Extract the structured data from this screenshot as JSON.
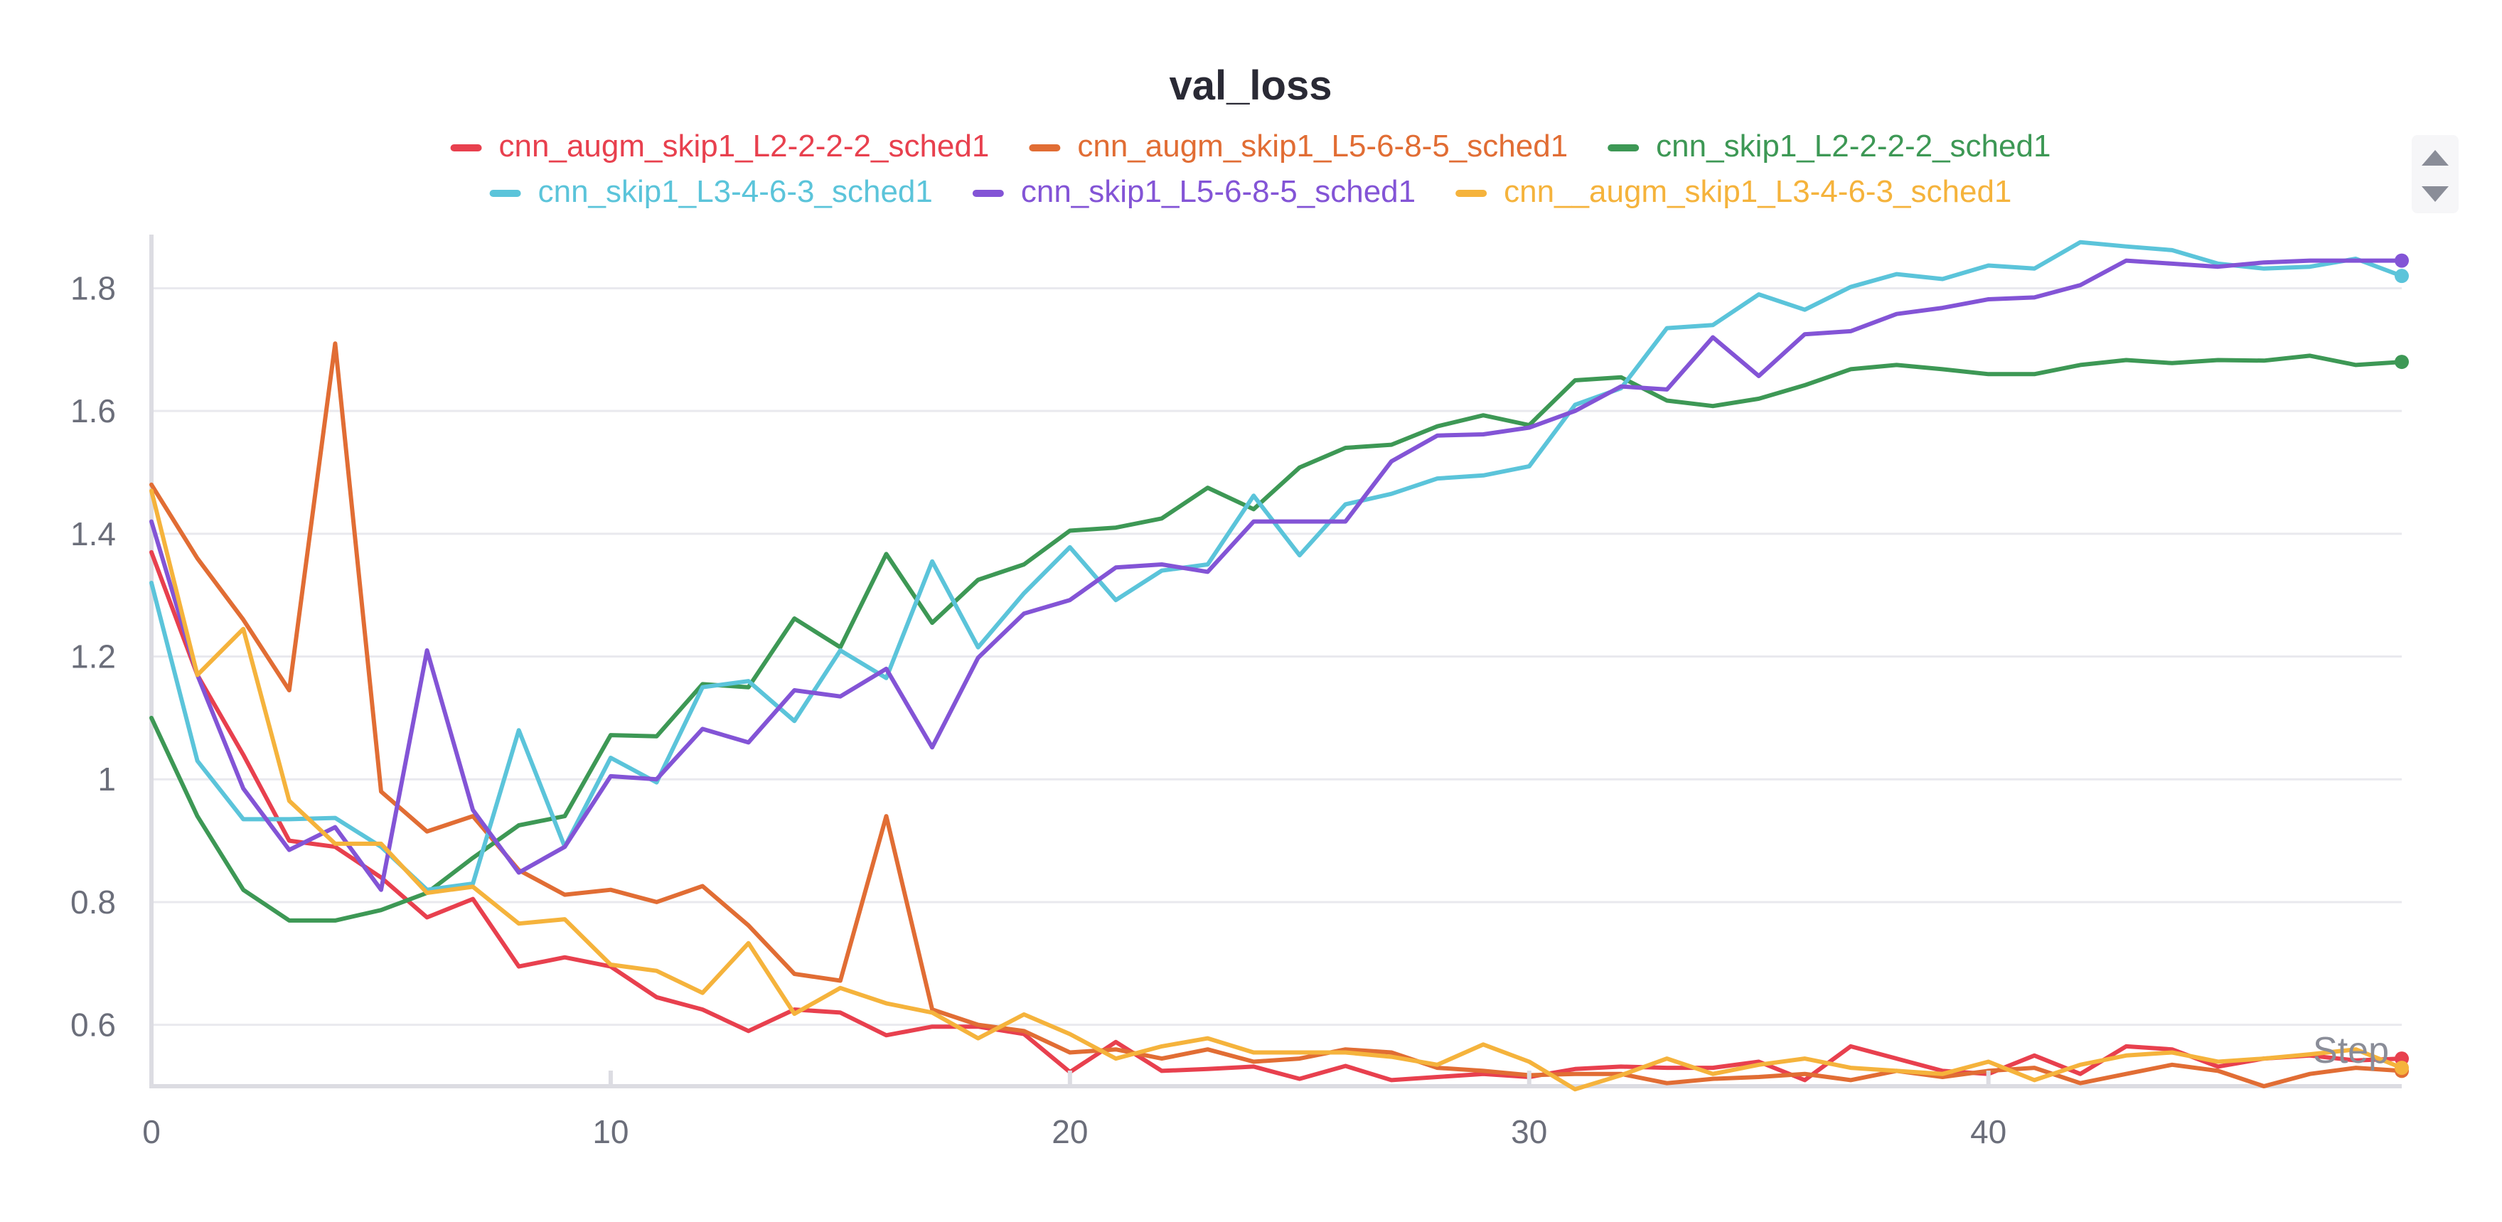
{
  "chart_data": {
    "type": "line",
    "title": "val_loss",
    "xlabel": "Step",
    "ylabel": "",
    "xlim": [
      0,
      49
    ],
    "ylim": [
      0.5,
      1.87
    ],
    "x_ticks": [
      0,
      10,
      20,
      30,
      40
    ],
    "y_ticks": [
      0.6,
      0.8,
      1.0,
      1.2,
      1.4,
      1.6,
      1.8
    ],
    "y_tick_labels": [
      "0.6",
      "0.8",
      "1",
      "1.2",
      "1.4",
      "1.6",
      "1.8"
    ],
    "grid": true,
    "legend_position": "top",
    "series": [
      {
        "name": "cnn_augm_skip1_L2-2-2-2_sched1",
        "color": "#e8404e",
        "values": [
          1.37,
          1.17,
          1.04,
          0.9,
          0.89,
          0.84,
          0.775,
          0.805,
          0.695,
          0.71,
          0.695,
          0.645,
          0.625,
          0.59,
          0.625,
          0.62,
          0.583,
          0.597,
          0.597,
          0.585,
          0.523,
          0.572,
          0.525,
          0.528,
          0.532,
          0.512,
          0.533,
          0.51,
          0.515,
          0.52,
          0.515,
          0.528,
          0.532,
          0.53,
          0.53,
          0.54,
          0.51,
          0.565,
          0.545,
          0.525,
          0.52,
          0.55,
          0.52,
          0.565,
          0.56,
          0.532,
          0.545,
          0.55,
          0.542,
          0.545
        ]
      },
      {
        "name": "cnn_augm_skip1_L5-6-8-5_sched1",
        "color": "#e16d34",
        "values": [
          1.48,
          1.36,
          1.26,
          1.145,
          1.71,
          0.98,
          0.915,
          0.94,
          0.852,
          0.812,
          0.82,
          0.8,
          0.826,
          0.762,
          0.683,
          0.672,
          0.94,
          0.625,
          0.6,
          0.59,
          0.555,
          0.56,
          0.545,
          0.56,
          0.54,
          0.545,
          0.56,
          0.555,
          0.53,
          0.525,
          0.518,
          0.52,
          0.52,
          0.505,
          0.512,
          0.515,
          0.52,
          0.51,
          0.525,
          0.515,
          0.525,
          0.53,
          0.505,
          0.52,
          0.535,
          0.525,
          0.5,
          0.52,
          0.53,
          0.525
        ]
      },
      {
        "name": "cnn_skip1_L2-2-2-2_sched1",
        "color": "#3d9855",
        "values": [
          1.1,
          0.94,
          0.82,
          0.77,
          0.77,
          0.787,
          0.815,
          0.872,
          0.925,
          0.94,
          1.072,
          1.07,
          1.155,
          1.15,
          1.262,
          1.215,
          1.367,
          1.255,
          1.325,
          1.35,
          1.405,
          1.41,
          1.425,
          1.475,
          1.44,
          1.508,
          1.54,
          1.545,
          1.575,
          1.593,
          1.577,
          1.65,
          1.655,
          1.617,
          1.608,
          1.62,
          1.642,
          1.668,
          1.675,
          1.668,
          1.66,
          1.66,
          1.675,
          1.683,
          1.678,
          1.683,
          1.682,
          1.69,
          1.675,
          1.68
        ]
      },
      {
        "name": "cnn_skip1_L3-4-6-3_sched1",
        "color": "#5bc4da",
        "values": [
          1.32,
          1.03,
          0.935,
          0.935,
          0.937,
          0.89,
          0.82,
          0.83,
          1.08,
          0.89,
          1.035,
          0.995,
          1.15,
          1.16,
          1.095,
          1.21,
          1.165,
          1.355,
          1.215,
          1.303,
          1.378,
          1.292,
          1.34,
          1.35,
          1.462,
          1.365,
          1.448,
          1.465,
          1.49,
          1.495,
          1.51,
          1.61,
          1.637,
          1.735,
          1.74,
          1.79,
          1.765,
          1.802,
          1.823,
          1.815,
          1.837,
          1.832,
          1.875,
          1.868,
          1.862,
          1.84,
          1.832,
          1.835,
          1.848,
          1.82
        ]
      },
      {
        "name": "cnn_skip1_L5-6-8-5_sched1",
        "color": "#8354d6",
        "values": [
          1.42,
          1.17,
          0.985,
          0.885,
          0.922,
          0.82,
          1.21,
          0.95,
          0.848,
          0.89,
          1.005,
          1.0,
          1.082,
          1.06,
          1.145,
          1.135,
          1.18,
          1.052,
          1.198,
          1.27,
          1.292,
          1.345,
          1.35,
          1.338,
          1.42,
          1.42,
          1.42,
          1.518,
          1.56,
          1.562,
          1.573,
          1.6,
          1.64,
          1.635,
          1.72,
          1.657,
          1.725,
          1.73,
          1.758,
          1.768,
          1.782,
          1.785,
          1.805,
          1.845,
          1.84,
          1.835,
          1.842,
          1.845,
          1.845,
          1.845
        ]
      },
      {
        "name": "cnn__augm_skip1_L3-4-6-3_sched1",
        "color": "#f5b33c",
        "values": [
          1.47,
          1.17,
          1.245,
          0.965,
          0.895,
          0.895,
          0.815,
          0.825,
          0.765,
          0.772,
          0.698,
          0.688,
          0.652,
          0.733,
          0.618,
          0.66,
          0.635,
          0.62,
          0.578,
          0.617,
          0.585,
          0.545,
          0.565,
          0.578,
          0.555,
          0.555,
          0.555,
          0.548,
          0.535,
          0.568,
          0.54,
          0.495,
          0.518,
          0.545,
          0.52,
          0.535,
          0.545,
          0.53,
          0.525,
          0.52,
          0.54,
          0.51,
          0.535,
          0.55,
          0.555,
          0.54,
          0.545,
          0.552,
          0.56,
          0.53
        ]
      }
    ]
  }
}
